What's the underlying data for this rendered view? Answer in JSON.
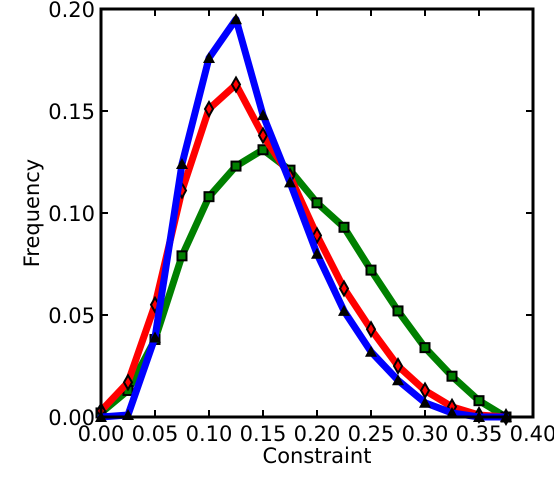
{
  "chart_data": {
    "type": "line",
    "title": "",
    "xlabel": "Constraint",
    "ylabel": "Frequency",
    "xlim": [
      0.0,
      0.4
    ],
    "ylim": [
      0.0,
      0.2
    ],
    "x_ticks": [
      0.0,
      0.05,
      0.1,
      0.15,
      0.2,
      0.25,
      0.3,
      0.35,
      0.4
    ],
    "x_tick_labels": [
      "0.00",
      "0.05",
      "0.10",
      "0.15",
      "0.20",
      "0.25",
      "0.30",
      "0.35",
      "0.40"
    ],
    "y_ticks": [
      0.0,
      0.05,
      0.1,
      0.15,
      0.2
    ],
    "y_tick_labels": [
      "0.00",
      "0.05",
      "0.10",
      "0.15",
      "0.20"
    ],
    "grid": false,
    "legend": "none",
    "series": [
      {
        "color": "#0000ff",
        "marker": "triangle",
        "x": [
          0.0,
          0.025,
          0.05,
          0.075,
          0.1,
          0.125,
          0.15,
          0.175,
          0.2,
          0.225,
          0.25,
          0.275,
          0.3,
          0.325,
          0.35,
          0.375
        ],
        "y": [
          0.0,
          0.001,
          0.039,
          0.124,
          0.176,
          0.195,
          0.148,
          0.115,
          0.08,
          0.052,
          0.032,
          0.018,
          0.007,
          0.002,
          0.0,
          0.0
        ]
      },
      {
        "color": "#ff0000",
        "marker": "diamond",
        "x": [
          0.0,
          0.025,
          0.05,
          0.075,
          0.1,
          0.125,
          0.15,
          0.175,
          0.2,
          0.225,
          0.25,
          0.275,
          0.3,
          0.325,
          0.35,
          0.375
        ],
        "y": [
          0.003,
          0.017,
          0.055,
          0.111,
          0.151,
          0.163,
          0.138,
          0.118,
          0.089,
          0.063,
          0.043,
          0.025,
          0.013,
          0.005,
          0.001,
          0.0
        ]
      },
      {
        "color": "#008000",
        "marker": "square",
        "x": [
          0.0,
          0.025,
          0.05,
          0.075,
          0.1,
          0.125,
          0.15,
          0.175,
          0.2,
          0.225,
          0.25,
          0.275,
          0.3,
          0.325,
          0.35,
          0.375
        ],
        "y": [
          0.002,
          0.013,
          0.038,
          0.079,
          0.108,
          0.123,
          0.131,
          0.121,
          0.105,
          0.093,
          0.072,
          0.052,
          0.034,
          0.02,
          0.008,
          0.0
        ]
      }
    ]
  }
}
